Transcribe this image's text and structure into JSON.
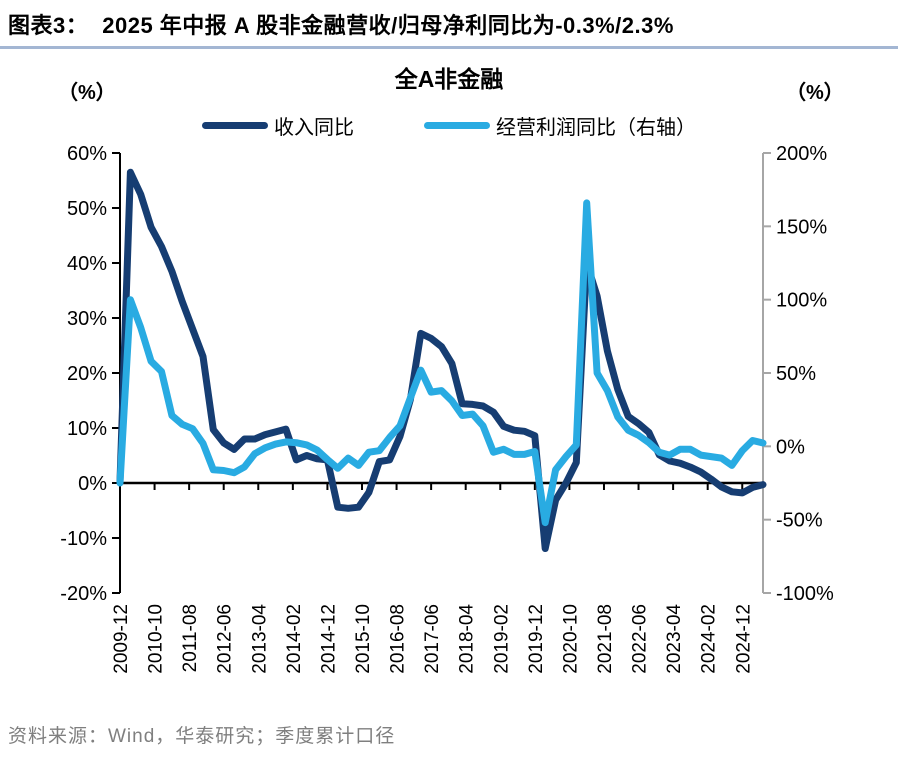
{
  "header": {
    "exhibit_label": "图表3：",
    "title": "2025 年中报 A 股非金融营收/归母净利同比为-0.3%/2.3%",
    "divider_color": "#a3b6d3"
  },
  "chart": {
    "title": "全A非金融",
    "left_axis_unit": "（%）",
    "right_axis_unit": "（%）",
    "legend": [
      {
        "label": "收入同比",
        "color": "#163d72"
      },
      {
        "label": "经营利润同比（右轴）",
        "color": "#29abe2"
      }
    ]
  },
  "footer": {
    "source": "资料来源：Wind，华泰研究；季度累计口径"
  },
  "chart_data": {
    "type": "line",
    "title": "全A非金融",
    "grid": false,
    "legend_position": "top",
    "left_axis": {
      "unit": "(%)",
      "range": [
        -20,
        60
      ],
      "ticks": [
        "60%",
        "50%",
        "40%",
        "30%",
        "20%",
        "10%",
        "0%",
        "-10%",
        "-20%"
      ],
      "tick_values": [
        60,
        50,
        40,
        30,
        20,
        10,
        0,
        -10,
        -20
      ]
    },
    "right_axis": {
      "unit": "(%)",
      "range": [
        -100,
        200
      ],
      "ticks": [
        "200%",
        "150%",
        "100%",
        "50%",
        "0%",
        "-50%",
        "-100%"
      ],
      "tick_values": [
        200,
        150,
        100,
        50,
        0,
        -50,
        -100
      ]
    },
    "x_tick_labels": [
      "2009-12",
      "2010-10",
      "2011-08",
      "2012-06",
      "2013-04",
      "2014-02",
      "2014-12",
      "2015-10",
      "2016-08",
      "2017-06",
      "2018-04",
      "2019-02",
      "2019-12",
      "2020-10",
      "2021-08",
      "2022-06",
      "2023-04",
      "2024-02",
      "2024-12"
    ],
    "x": [
      "2009-12",
      "2010-03",
      "2010-06",
      "2010-09",
      "2010-12",
      "2011-03",
      "2011-06",
      "2011-09",
      "2011-12",
      "2012-03",
      "2012-06",
      "2012-09",
      "2012-12",
      "2013-03",
      "2013-06",
      "2013-09",
      "2013-12",
      "2014-03",
      "2014-06",
      "2014-09",
      "2014-12",
      "2015-03",
      "2015-06",
      "2015-09",
      "2015-12",
      "2016-03",
      "2016-06",
      "2016-09",
      "2016-12",
      "2017-03",
      "2017-06",
      "2017-09",
      "2017-12",
      "2018-03",
      "2018-06",
      "2018-09",
      "2018-12",
      "2019-03",
      "2019-06",
      "2019-09",
      "2019-12",
      "2020-03",
      "2020-06",
      "2020-09",
      "2020-12",
      "2021-03",
      "2021-06",
      "2021-09",
      "2021-12",
      "2022-03",
      "2022-06",
      "2022-09",
      "2022-12",
      "2023-03",
      "2023-06",
      "2023-09",
      "2023-12",
      "2024-03",
      "2024-06",
      "2024-09",
      "2024-12",
      "2025-03",
      "2025-06"
    ],
    "series": [
      {
        "name": "收入同比",
        "axis": "left",
        "color": "#163d72",
        "values": [
          0.3,
          56.5,
          52.5,
          46.5,
          43,
          38.5,
          33,
          28,
          23,
          9.7,
          7.3,
          6.1,
          8,
          8,
          8.8,
          9.3,
          9.8,
          4.2,
          5.0,
          4.4,
          4.2,
          -4.4,
          -4.6,
          -4.4,
          -1.7,
          3.9,
          4.2,
          8.5,
          15.2,
          27.2,
          26.3,
          24.8,
          21.7,
          14.4,
          14.3,
          14.0,
          12.9,
          10.3,
          9.6,
          9.4,
          8.6,
          -11.9,
          -3.1,
          0.0,
          3.7,
          40,
          34,
          24,
          17,
          12.1,
          10.8,
          9.2,
          5.1,
          4.0,
          3.6,
          2.9,
          2.0,
          0.7,
          -0.7,
          -1.6,
          -1.8,
          -0.8,
          -0.3
        ]
      },
      {
        "name": "经营利润同比（右轴）",
        "axis": "right",
        "color": "#29abe2",
        "values": [
          -25,
          100,
          81,
          58,
          51,
          21,
          15,
          12,
          2,
          -16,
          -16.5,
          -18,
          -14,
          -5,
          -1,
          1.5,
          3,
          2.5,
          1,
          -2.5,
          -9,
          -15,
          -8,
          -13,
          -4,
          -3,
          6,
          14,
          33,
          52,
          37,
          38,
          31,
          21,
          22,
          14,
          -4,
          -2,
          -5.5,
          -5.5,
          -3.5,
          -52,
          -16,
          -7,
          1,
          166,
          50,
          38,
          20,
          11,
          7.5,
          2.5,
          -4,
          -6,
          -2,
          -2,
          -6,
          -7,
          -8,
          -13,
          -3,
          4,
          2.3
        ]
      }
    ]
  }
}
